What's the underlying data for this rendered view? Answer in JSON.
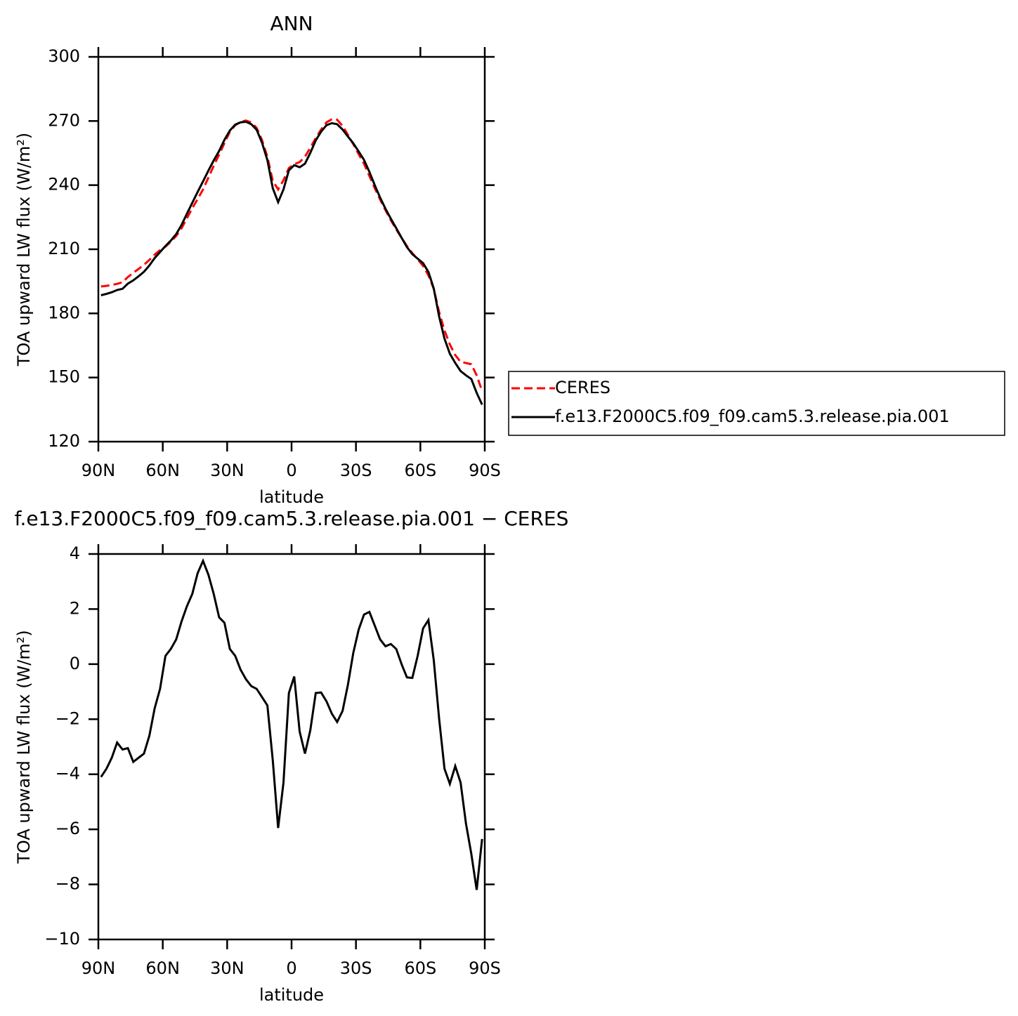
{
  "chart_data": [
    {
      "type": "line",
      "title": "ANN",
      "xlabel": "latitude",
      "ylabel": "TOA upward LW flux (W/m²)",
      "x": [
        88.75,
        86.25,
        83.75,
        81.25,
        78.75,
        76.25,
        73.75,
        71.25,
        68.75,
        66.25,
        63.75,
        61.25,
        58.75,
        56.25,
        53.75,
        51.25,
        48.75,
        46.25,
        43.75,
        41.25,
        38.75,
        36.25,
        33.75,
        31.25,
        28.75,
        26.25,
        23.75,
        21.25,
        18.75,
        16.25,
        13.75,
        11.25,
        8.75,
        6.25,
        3.75,
        1.25,
        -1.25,
        -3.75,
        -6.25,
        -8.75,
        -11.25,
        -13.75,
        -16.25,
        -18.75,
        -21.25,
        -23.75,
        -26.25,
        -28.75,
        -31.25,
        -33.75,
        -36.25,
        -38.75,
        -41.25,
        -43.75,
        -46.25,
        -48.75,
        -51.25,
        -53.75,
        -56.25,
        -58.75,
        -61.25,
        -63.75,
        -66.25,
        -68.75,
        -71.25,
        -73.75,
        -76.25,
        -78.75,
        -81.25,
        -83.75,
        -86.25,
        -88.75
      ],
      "series": [
        {
          "name": "CERES",
          "color": "#ff0000",
          "dashed": true,
          "values": [
            192.6,
            192.9,
            193.3,
            193.8,
            194.6,
            197,
            199,
            200.8,
            202.7,
            205,
            207.5,
            209.6,
            211.2,
            213.5,
            216.2,
            219.8,
            224.5,
            229.2,
            233.5,
            238,
            243.5,
            249,
            254.3,
            259.7,
            265,
            268,
            269.6,
            270.2,
            269.3,
            266.8,
            261,
            253.2,
            242,
            238,
            242.3,
            248,
            249.8,
            250.8,
            253.3,
            257.5,
            262,
            266,
            269.4,
            270.8,
            270.6,
            267.7,
            263.5,
            259.2,
            254.5,
            250,
            244.3,
            238.6,
            233.3,
            228.3,
            223.6,
            219.3,
            215.4,
            211.5,
            208.2,
            205.3,
            202.2,
            197.8,
            191.5,
            180.5,
            172,
            165.5,
            160.5,
            157.3,
            156.8,
            156.2,
            151,
            143.7
          ]
        },
        {
          "name": "f.e13.F2000C5.f09_f09.cam5.3.release.pia.001",
          "color": "#000000",
          "dashed": false,
          "values": [
            188.5,
            189.1,
            189.9,
            190.95,
            191.5,
            193.95,
            195.45,
            197.4,
            199.45,
            202.4,
            205.9,
            208.7,
            211.5,
            214.05,
            217.1,
            221.35,
            226.6,
            231.75,
            236.8,
            241.75,
            246.75,
            251.55,
            256,
            261.2,
            265.55,
            268.3,
            269.4,
            269.65,
            268.5,
            265.9,
            259.8,
            251.7,
            238.5,
            232.05,
            238,
            246.95,
            249.35,
            248.35,
            250.05,
            255.1,
            260.95,
            264.97,
            268.05,
            269,
            268.5,
            266,
            262.75,
            259.6,
            255.75,
            251.8,
            246.2,
            240,
            234.2,
            228.95,
            224.33,
            219.85,
            215.4,
            211.02,
            207.7,
            205.6,
            203.5,
            199.4,
            191.65,
            178.5,
            168.2,
            161.15,
            156.8,
            153,
            151,
            149.3,
            142.8,
            137.35
          ]
        }
      ],
      "xlim": [
        90,
        -90
      ],
      "ylim": [
        120,
        300
      ],
      "xticks": [
        {
          "value": 90,
          "label": "90N"
        },
        {
          "value": 60,
          "label": "60N"
        },
        {
          "value": 30,
          "label": "30N"
        },
        0,
        {
          "value": -30,
          "label": "30S"
        },
        {
          "value": -60,
          "label": "60S"
        },
        {
          "value": -90,
          "label": "90S"
        }
      ],
      "yticks": [
        120,
        150,
        180,
        210,
        240,
        270,
        300
      ],
      "legend": "right"
    },
    {
      "type": "line",
      "title": "f.e13.F2000C5.f09_f09.cam5.3.release.pia.001 − CERES",
      "xlabel": "latitude",
      "ylabel": "TOA upward LW flux (W/m²)",
      "x": [
        88.75,
        86.25,
        83.75,
        81.25,
        78.75,
        76.25,
        73.75,
        71.25,
        68.75,
        66.25,
        63.75,
        61.25,
        58.75,
        56.25,
        53.75,
        51.25,
        48.75,
        46.25,
        43.75,
        41.25,
        38.75,
        36.25,
        33.75,
        31.25,
        28.75,
        26.25,
        23.75,
        21.25,
        18.75,
        16.25,
        13.75,
        11.25,
        8.75,
        6.25,
        3.75,
        1.25,
        -1.25,
        -3.75,
        -6.25,
        -8.75,
        -11.25,
        -13.75,
        -16.25,
        -18.75,
        -21.25,
        -23.75,
        -26.25,
        -28.75,
        -31.25,
        -33.75,
        -36.25,
        -38.75,
        -41.25,
        -43.75,
        -46.25,
        -48.75,
        -51.25,
        -53.75,
        -56.25,
        -58.75,
        -61.25,
        -63.75,
        -66.25,
        -68.75,
        -71.25,
        -73.75,
        -76.25,
        -78.75,
        -81.25,
        -83.75,
        -86.25,
        -88.75
      ],
      "series": [
        {
          "color": "#000000",
          "dashed": false,
          "values": [
            -4.1,
            -3.8,
            -3.4,
            -2.85,
            -3.1,
            -3.05,
            -3.55,
            -3.4,
            -3.25,
            -2.6,
            -1.6,
            -0.9,
            0.3,
            0.55,
            0.9,
            1.55,
            2.1,
            2.55,
            3.3,
            3.75,
            3.25,
            2.55,
            1.7,
            1.5,
            0.55,
            0.3,
            -0.2,
            -0.55,
            -0.8,
            -0.9,
            -1.2,
            -1.5,
            -3.5,
            -5.95,
            -4.3,
            -1.05,
            -0.45,
            -2.45,
            -3.25,
            -2.4,
            -1.05,
            -1.03,
            -1.35,
            -1.8,
            -2.1,
            -1.7,
            -0.75,
            0.4,
            1.25,
            1.8,
            1.9,
            1.4,
            0.9,
            0.65,
            0.73,
            0.55,
            0,
            -0.48,
            -0.5,
            0.3,
            1.3,
            1.6,
            0.15,
            -2,
            -3.8,
            -4.35,
            -3.7,
            -4.3,
            -5.8,
            -6.9,
            -8.2,
            -6.35
          ]
        }
      ],
      "xlim": [
        90,
        -90
      ],
      "ylim": [
        -10,
        4
      ],
      "xticks": [
        {
          "value": 90,
          "label": "90N"
        },
        {
          "value": 60,
          "label": "60N"
        },
        {
          "value": 30,
          "label": "30N"
        },
        0,
        {
          "value": -30,
          "label": "30S"
        },
        {
          "value": -60,
          "label": "60S"
        },
        {
          "value": -90,
          "label": "90S"
        }
      ],
      "yticks": [
        {
          "value": -10,
          "label": "−10"
        },
        {
          "value": -8,
          "label": "−8"
        },
        {
          "value": -6,
          "label": "−6"
        },
        {
          "value": -4,
          "label": "−4"
        },
        {
          "value": -2,
          "label": "−2"
        },
        0,
        2,
        4
      ]
    }
  ]
}
